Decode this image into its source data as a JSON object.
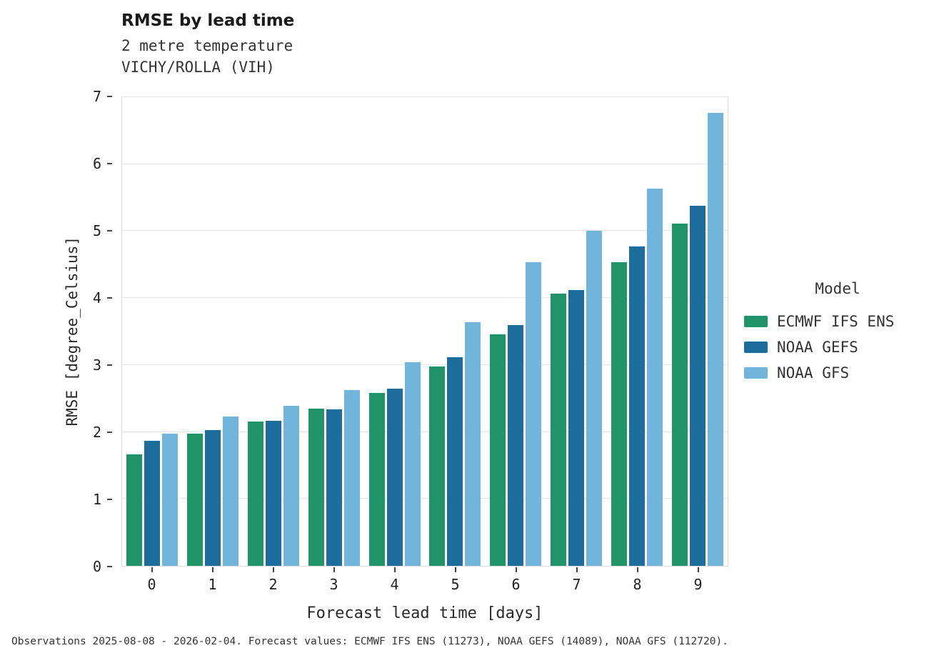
{
  "chart_data": {
    "type": "bar",
    "title": "RMSE by lead time",
    "subtitle1": "2 metre temperature",
    "subtitle2": "VICHY/ROLLA (VIH)",
    "xlabel": "Forecast lead time [days]",
    "ylabel": "RMSE [degree_Celsius]",
    "ylim": [
      0,
      7
    ],
    "yticks": [
      0,
      1,
      2,
      3,
      4,
      5,
      6,
      7
    ],
    "categories": [
      "0",
      "1",
      "2",
      "3",
      "4",
      "5",
      "6",
      "7",
      "8",
      "9"
    ],
    "grid": true,
    "legend_position": "right",
    "legend_title": "Model",
    "series": [
      {
        "name": "ECMWF IFS ENS",
        "color": "#1e9468",
        "values": [
          1.67,
          1.97,
          2.16,
          2.35,
          2.58,
          2.98,
          3.46,
          4.07,
          4.53,
          5.11
        ]
      },
      {
        "name": "NOAA GEFS",
        "color": "#1c6d9b",
        "values": [
          1.87,
          2.03,
          2.17,
          2.34,
          2.65,
          3.12,
          3.6,
          4.12,
          4.77,
          5.38
        ]
      },
      {
        "name": "NOAA GFS",
        "color": "#72b5dc",
        "values": [
          1.97,
          2.23,
          2.39,
          2.63,
          3.04,
          3.64,
          4.53,
          5.0,
          5.63,
          6.77
        ]
      }
    ]
  },
  "footer": {
    "text": "Observations 2025-08-08 - 2026-02-04. Forecast values: ECMWF IFS ENS (11273), NOAA GEFS (14089), NOAA GFS (112720)."
  }
}
